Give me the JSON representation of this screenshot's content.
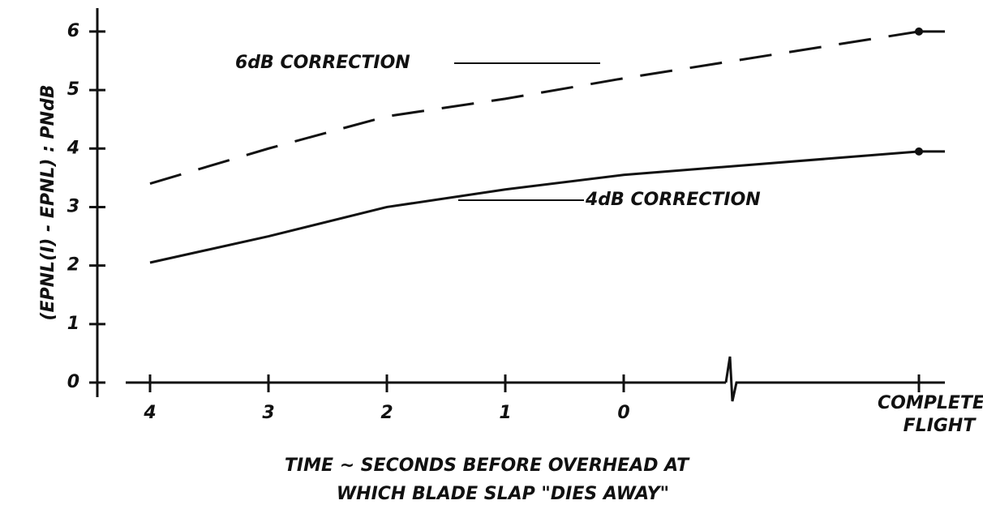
{
  "chart_data": {
    "type": "line",
    "y_label": "(EPNL(I) - EPNL) : PNdB",
    "x_label": [
      "TIME ~ SECONDS BEFORE OVERHEAD AT",
      "WHICH BLADE SLAP \"DIES AWAY\""
    ],
    "categories": [
      "4",
      "3",
      "2",
      "1",
      "0",
      "COMPLETE FLIGHT"
    ],
    "series": [
      {
        "name": "6dB CORRECTION",
        "color": "#111111",
        "dashed": true,
        "values": [
          3.4,
          4.0,
          4.55,
          4.85,
          5.2,
          6.0
        ]
      },
      {
        "name": "4dB CORRECTION",
        "color": "#111111",
        "dashed": false,
        "values": [
          2.05,
          2.5,
          3.0,
          3.3,
          3.55,
          3.95
        ]
      }
    ],
    "ylim": [
      0,
      6.4
    ],
    "yticks": [
      0,
      1,
      2,
      3,
      4,
      5,
      6
    ],
    "grid": false
  }
}
